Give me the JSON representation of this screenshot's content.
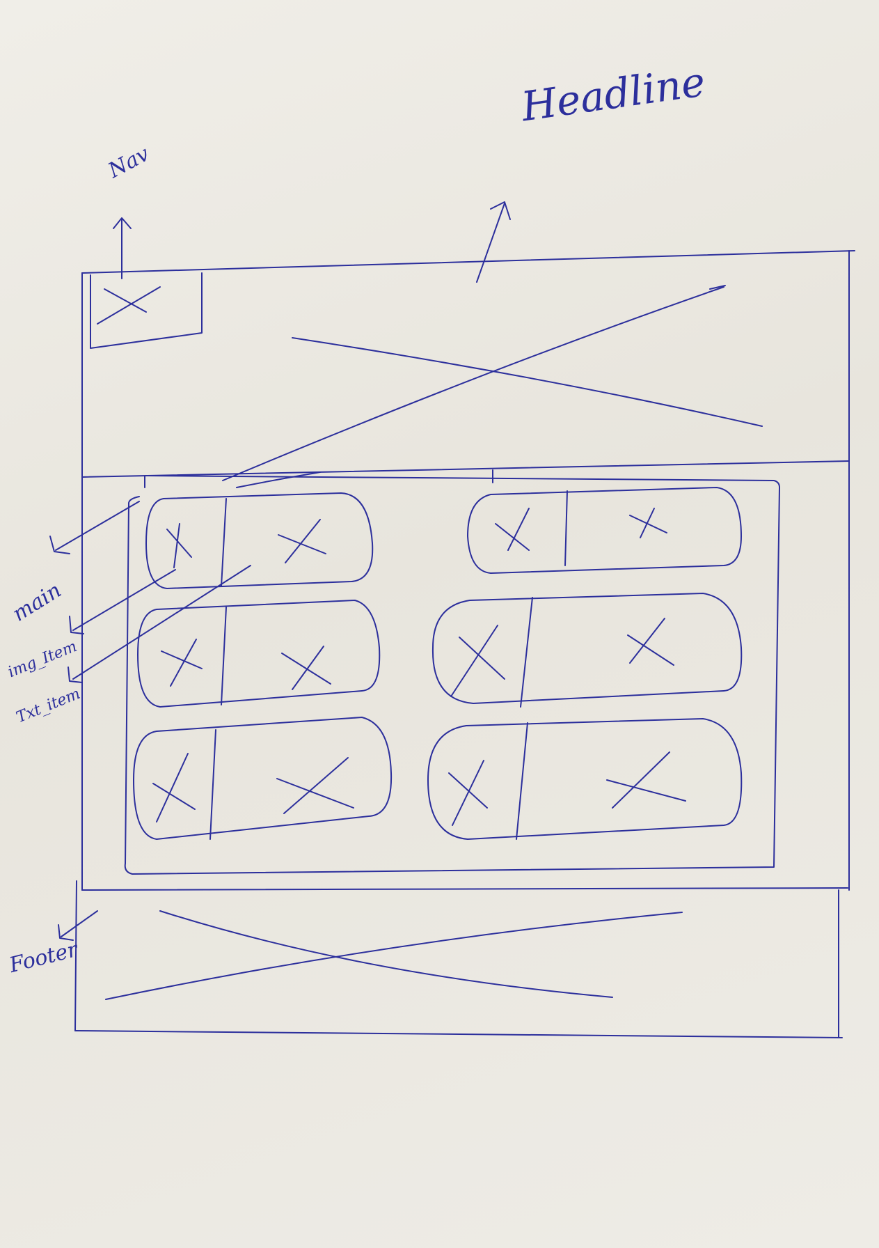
{
  "annotations": {
    "headline": "Headline",
    "nav": "Nav",
    "main": "main",
    "img_item": "img_Item",
    "txt_item": "Txt_item",
    "footer": "Footer"
  },
  "colors": {
    "ink": "#2c2f9c",
    "paper": "#ece9e1"
  },
  "card_grid": {
    "columns": 2,
    "rows": 3,
    "card_parts": [
      "img_Item",
      "Txt_item"
    ]
  }
}
